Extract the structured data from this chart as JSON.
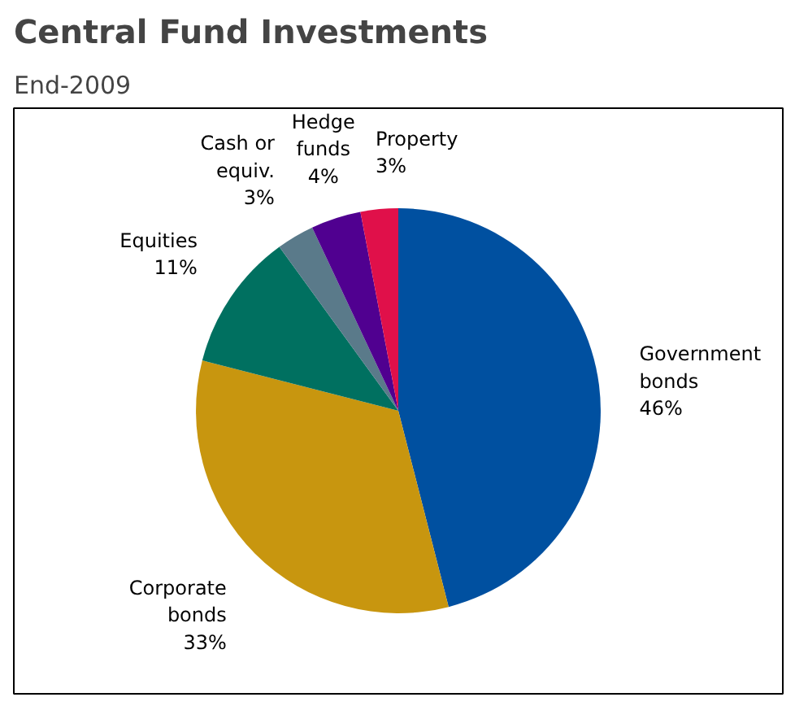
{
  "chart_data": {
    "type": "pie",
    "title": "Central Fund Investments",
    "subtitle": "End-2009",
    "categories": [
      "Government\nbonds",
      "Corporate\nbonds",
      "Equities",
      "Cash or\nequiv.",
      "Hedge\nfunds",
      "Property"
    ],
    "values": [
      46,
      33,
      11,
      3,
      4,
      3
    ],
    "colors": [
      "#0050a0",
      "#c8960f",
      "#007060",
      "#5a7a8a",
      "#500090",
      "#e0104a"
    ],
    "value_labels": [
      "46%",
      "33%",
      "11%",
      "3%",
      "4%",
      "3%"
    ]
  }
}
